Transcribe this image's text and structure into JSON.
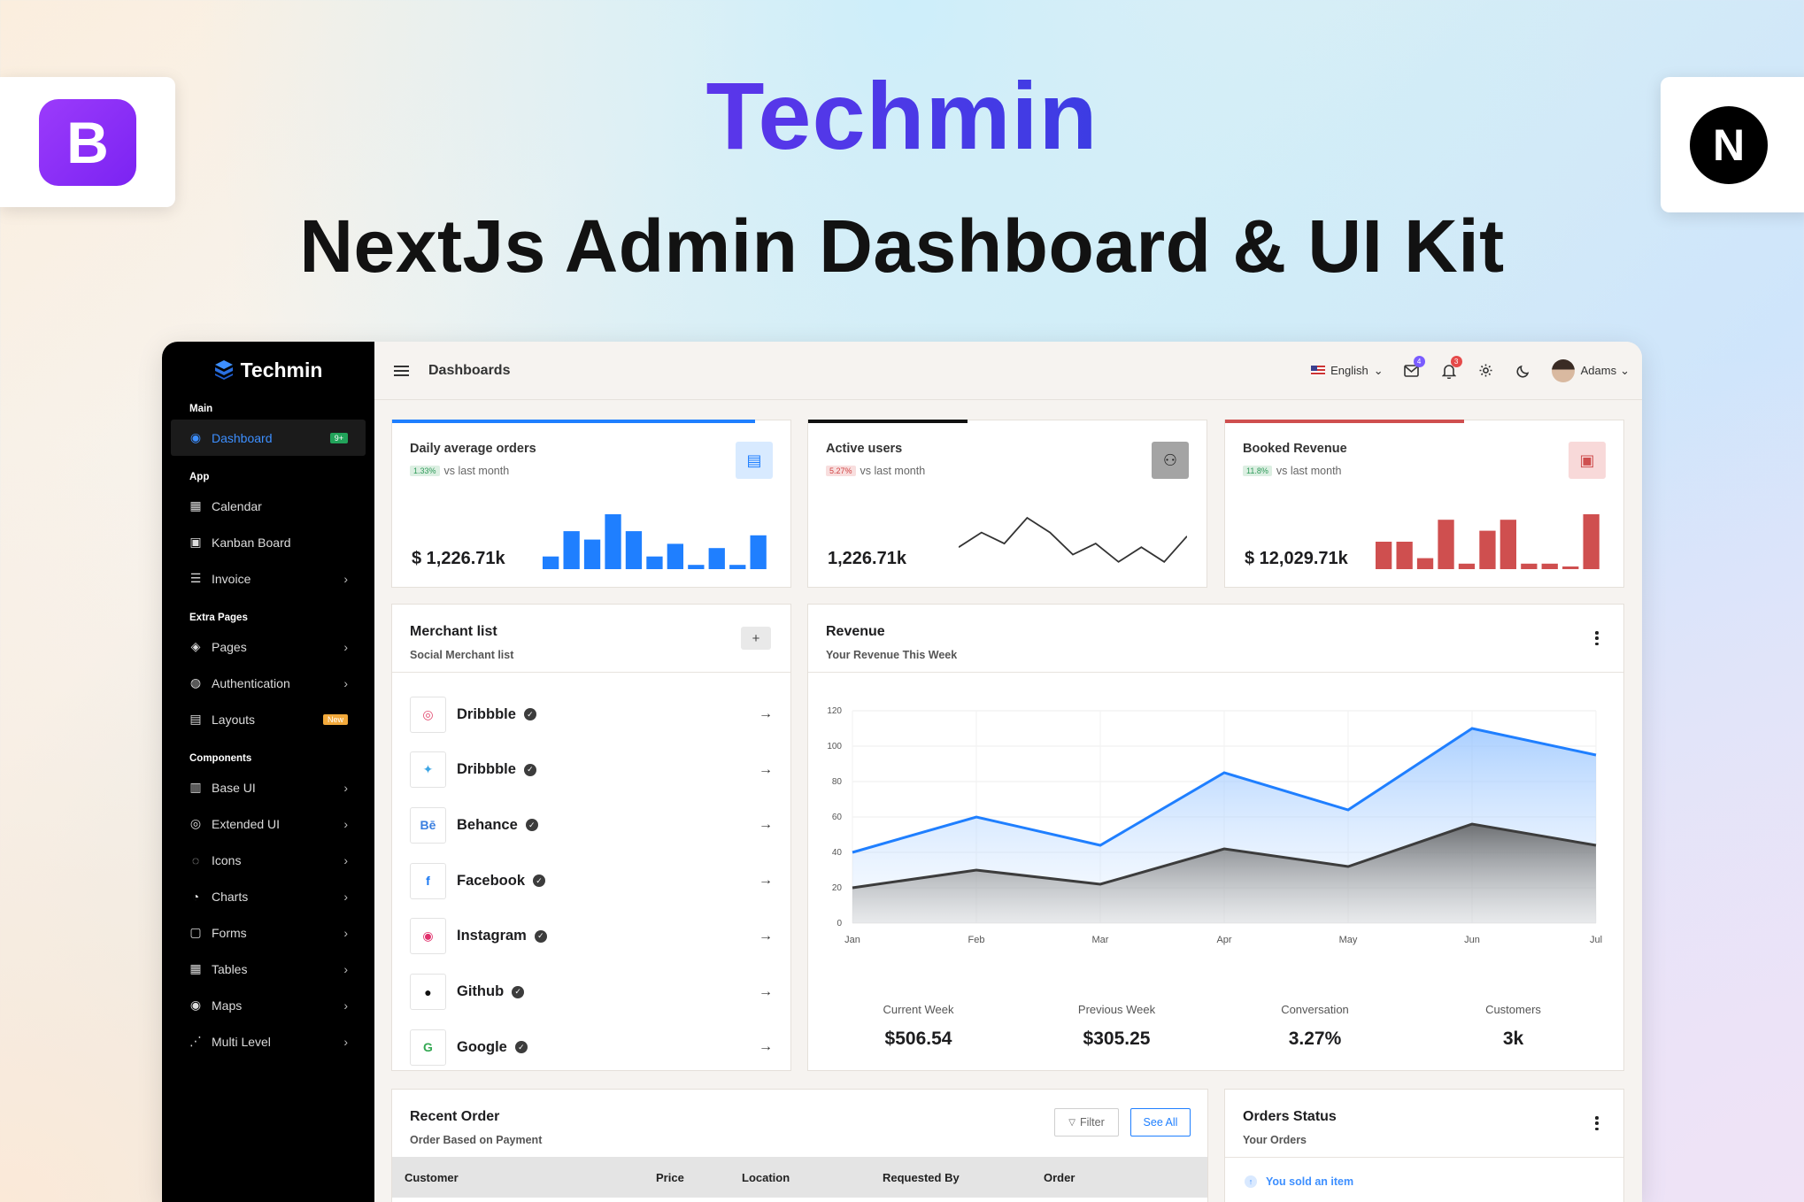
{
  "hero": {
    "brand": "Techmin",
    "subtitle": "NextJs Admin Dashboard & UI Kit",
    "left_logo_letter": "B",
    "right_logo_letter": "N"
  },
  "sidebar": {
    "brand": "Techmin",
    "sections": [
      {
        "title": "Main",
        "items": [
          {
            "label": "Dashboard",
            "icon": "dashboard-icon",
            "badge": "9+",
            "active": true
          }
        ]
      },
      {
        "title": "App",
        "items": [
          {
            "label": "Calendar",
            "icon": "calendar-icon"
          },
          {
            "label": "Kanban Board",
            "icon": "kanban-icon"
          },
          {
            "label": "Invoice",
            "icon": "invoice-icon",
            "chevron": true
          }
        ]
      },
      {
        "title": "Extra Pages",
        "items": [
          {
            "label": "Pages",
            "icon": "layers-icon",
            "chevron": true
          },
          {
            "label": "Authentication",
            "icon": "user-circle-icon",
            "chevron": true
          },
          {
            "label": "Layouts",
            "icon": "layout-icon",
            "badge": "New"
          }
        ]
      },
      {
        "title": "Components",
        "items": [
          {
            "label": "Base UI",
            "icon": "briefcase-icon",
            "chevron": true
          },
          {
            "label": "Extended UI",
            "icon": "compass-icon",
            "chevron": true
          },
          {
            "label": "Icons",
            "icon": "drop-icon",
            "chevron": true
          },
          {
            "label": "Charts",
            "icon": "pie-icon",
            "chevron": true
          },
          {
            "label": "Forms",
            "icon": "clipboard-icon",
            "chevron": true
          },
          {
            "label": "Tables",
            "icon": "table-icon",
            "chevron": true
          },
          {
            "label": "Maps",
            "icon": "map-pin-icon",
            "chevron": true
          },
          {
            "label": "Multi Level",
            "icon": "share-icon",
            "chevron": true
          }
        ]
      }
    ]
  },
  "topbar": {
    "page": "Dashboards",
    "language": "English",
    "mail_count": "4",
    "notif_count": "3",
    "user": "Adams"
  },
  "stats": [
    {
      "title": "Daily average orders",
      "trend": "1.33%",
      "trend_text": "vs last month",
      "value": "$ 1,226.71k",
      "color": "#1f7fff",
      "progress": 0.91,
      "spark": [
        3,
        9,
        7,
        13,
        9,
        3,
        6,
        1,
        5,
        1,
        8
      ]
    },
    {
      "title": "Active users",
      "trend": "5.27%",
      "trend_text": "vs last month",
      "value": "1,226.71k",
      "color": "#111111",
      "progress": 0.4,
      "spark": [
        5,
        9,
        6,
        13,
        9,
        3,
        6,
        1,
        5,
        1,
        8
      ]
    },
    {
      "title": "Booked Revenue",
      "trend": "11.8%",
      "trend_text": "vs last month",
      "value": "$ 12,029.71k",
      "color": "#cf4f4f",
      "progress": 0.6,
      "spark": [
        5,
        5,
        2,
        9,
        1,
        7,
        9,
        1,
        1,
        0,
        10
      ]
    }
  ],
  "merchants": {
    "title": "Merchant list",
    "subtitle": "Social Merchant list",
    "add_label": "+",
    "items": [
      {
        "name": "Dribbble",
        "logo": "dribbble-icon",
        "glyph": "◎",
        "color": "#e24a6f"
      },
      {
        "name": "Dribbble",
        "logo": "twitter-icon",
        "glyph": "✦",
        "color": "#3ea6e5"
      },
      {
        "name": "Behance",
        "logo": "behance-icon",
        "glyph": "Bē",
        "color": "#3a7fe0"
      },
      {
        "name": "Facebook",
        "logo": "facebook-icon",
        "glyph": "f",
        "color": "#1877f2"
      },
      {
        "name": "Instagram",
        "logo": "instagram-icon",
        "glyph": "◉",
        "color": "#e1306c"
      },
      {
        "name": "Github",
        "logo": "github-icon",
        "glyph": "●",
        "color": "#111111"
      },
      {
        "name": "Google",
        "logo": "google-icon",
        "glyph": "G",
        "color": "#34a853"
      }
    ]
  },
  "revenue": {
    "title": "Revenue",
    "subtitle": "Your Revenue This Week",
    "stats": [
      {
        "label": "Current Week",
        "value": "$506.54"
      },
      {
        "label": "Previous Week",
        "value": "$305.25"
      },
      {
        "label": "Conversation",
        "value": "3.27%"
      },
      {
        "label": "Customers",
        "value": "3k"
      }
    ]
  },
  "chart_data": {
    "type": "area",
    "categories": [
      "Jan",
      "Feb",
      "Mar",
      "Apr",
      "May",
      "Jun",
      "Jul"
    ],
    "series": [
      {
        "values": [
          40,
          60,
          44,
          85,
          64,
          110,
          95
        ],
        "color": "#1f7fff"
      },
      {
        "values": [
          20,
          30,
          22,
          42,
          32,
          56,
          44
        ],
        "color": "#3c3c3c"
      }
    ],
    "ylim": [
      0,
      120
    ],
    "yticks": [
      0,
      20,
      40,
      60,
      80,
      100,
      120
    ],
    "grid": true
  },
  "recent_order": {
    "title": "Recent Order",
    "subtitle": "Order Based on Payment",
    "filter_label": "Filter",
    "see_all_label": "See All",
    "columns": [
      "Customer",
      "Price",
      "Location",
      "Requested By",
      "Order"
    ]
  },
  "orders_status": {
    "title": "Orders Status",
    "subtitle": "Your Orders",
    "first_item": "You sold an item"
  }
}
